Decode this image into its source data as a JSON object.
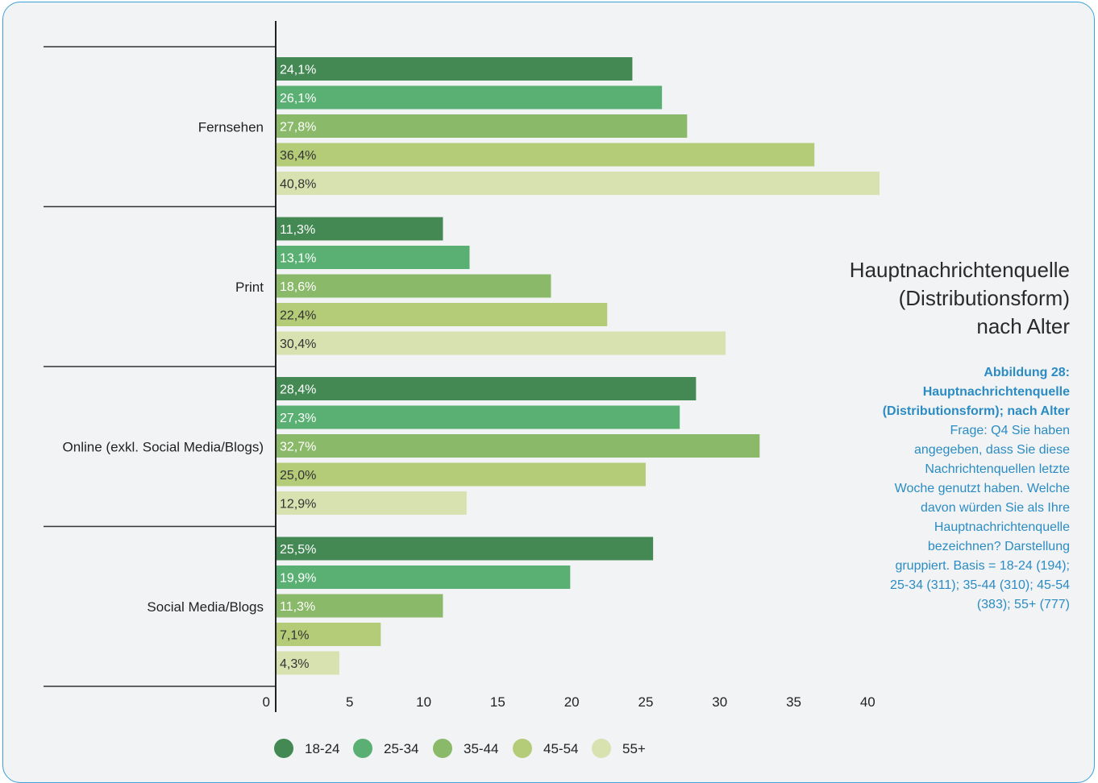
{
  "chart_data": {
    "type": "bar",
    "orientation": "horizontal",
    "categories": [
      "Fernsehen",
      "Print",
      "Online (exkl. Social Media/Blogs)",
      "Social Media/Blogs"
    ],
    "series": [
      {
        "name": "18-24",
        "color": "#448954",
        "values": [
          24.1,
          11.3,
          28.4,
          25.5
        ],
        "labels": [
          "24,1%",
          "11,3%",
          "28,4%",
          "25,5%"
        ]
      },
      {
        "name": "25-34",
        "color": "#59b072",
        "values": [
          26.1,
          13.1,
          27.3,
          19.9
        ],
        "labels": [
          "26,1%",
          "13,1%",
          "27,3%",
          "19,9%"
        ]
      },
      {
        "name": "35-44",
        "color": "#8ab96a",
        "values": [
          27.8,
          18.6,
          32.7,
          11.3
        ],
        "labels": [
          "27,8%",
          "18,6%",
          "32,7%",
          "11,3%"
        ]
      },
      {
        "name": "45-54",
        "color": "#b4cc78",
        "values": [
          36.4,
          22.4,
          25.0,
          7.1
        ],
        "labels": [
          "36,4%",
          "22,4%",
          "25,0%",
          "7,1%"
        ]
      },
      {
        "name": "55+",
        "color": "#d7e2b0",
        "values": [
          40.8,
          30.4,
          12.9,
          4.3
        ],
        "labels": [
          "40,8%",
          "30,4%",
          "12,9%",
          "4,3%"
        ]
      }
    ],
    "xlim": [
      0,
      40.8
    ],
    "xticks": [
      0,
      5,
      10,
      15,
      20,
      25,
      30,
      35,
      40
    ],
    "legend_position": "bottom",
    "label_colors": {
      "dark": "#ffffff",
      "light": "#333333"
    }
  },
  "side_title": [
    "Hauptnachrichtenquelle",
    "(Distributionsform)",
    "nach Alter"
  ],
  "caption": {
    "heading": [
      "Abbildung 28:",
      "Hauptnachrichtenquelle",
      "(Distributionsform); nach Alter"
    ],
    "body": [
      "Frage: Q4 Sie haben",
      "angegeben, dass Sie diese",
      "Nachrichtenquellen letzte",
      "Woche genutzt haben. Welche",
      "davon würden Sie als Ihre",
      "Hauptnachrichtenquelle",
      "bezeichnen? Darstellung",
      "gruppiert. Basis = 18-24 (194);",
      "25-34 (311); 35-44 (310); 45-54",
      "(383); 55+ (777)"
    ]
  }
}
